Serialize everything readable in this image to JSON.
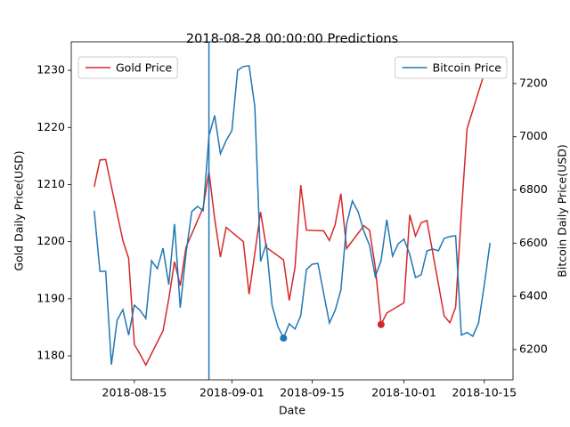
{
  "chart_data": {
    "type": "line",
    "title": "2018-08-28 00:00:00 Predictions",
    "x_label": "Date",
    "y_label": "Gold Daily Price(USD)",
    "y2_label": "Bitcoin Daily Price(USD)",
    "xlim": [
      "2018-08-04",
      "2018-10-20"
    ],
    "xticks": [
      "2018-08-15",
      "2018-09-01",
      "2018-09-15",
      "2018-10-01",
      "2018-10-15"
    ],
    "ylim": [
      1175.8,
      1235
    ],
    "yticks": [
      1180,
      1190,
      1200,
      1210,
      1220,
      1230
    ],
    "y2lim": [
      6086,
      7357
    ],
    "y2ticks": [
      6200,
      6400,
      6600,
      6800,
      7000,
      7200
    ],
    "vline_x": "2018-08-28",
    "vline_color": "#1f77b4",
    "series": [
      {
        "name": "Gold Price",
        "color": "#d62728",
        "axis": "y",
        "legend": "upper left",
        "x": [
          "2018-08-08",
          "2018-08-09",
          "2018-08-10",
          "2018-08-13",
          "2018-08-14",
          "2018-08-15",
          "2018-08-16",
          "2018-08-17",
          "2018-08-20",
          "2018-08-21",
          "2018-08-22",
          "2018-08-23",
          "2018-08-24",
          "2018-08-27",
          "2018-08-28",
          "2018-08-29",
          "2018-08-30",
          "2018-08-31",
          "2018-09-03",
          "2018-09-04",
          "2018-09-05",
          "2018-09-06",
          "2018-09-07",
          "2018-09-10",
          "2018-09-11",
          "2018-09-12",
          "2018-09-13",
          "2018-09-14",
          "2018-09-17",
          "2018-09-18",
          "2018-09-19",
          "2018-09-20",
          "2018-09-21",
          "2018-09-24",
          "2018-09-25",
          "2018-09-26",
          "2018-09-27",
          "2018-09-28",
          "2018-10-01",
          "2018-10-02",
          "2018-10-03",
          "2018-10-04",
          "2018-10-05",
          "2018-10-08",
          "2018-10-09",
          "2018-10-10",
          "2018-10-11",
          "2018-10-12",
          "2018-10-15"
        ],
        "values": [
          1209.6,
          1214.3,
          1214.4,
          1200.2,
          1197.1,
          1182,
          1180.3,
          1178.4,
          1184.4,
          1190,
          1196.5,
          1192.3,
          1199,
          1206,
          1212.3,
          1204,
          1197.3,
          1202.5,
          1200,
          1190.8,
          1198,
          1205.2,
          1199,
          1196.8,
          1189.7,
          1195.5,
          1209.9,
          1202,
          1201.9,
          1200.2,
          1203,
          1208.4,
          1198.8,
          1202.8,
          1202,
          1195.5,
          1185.5,
          1187.5,
          1189.3,
          1204.7,
          1201,
          1203.3,
          1203.7,
          1187,
          1185.8,
          1188.5,
          1205,
          1219.8,
          1229.5
        ],
        "marker_x": "2018-09-27",
        "marker_value": 1185.5
      },
      {
        "name": "Bitcoin Price",
        "color": "#1f77b4",
        "axis": "y2",
        "legend": "upper right",
        "x": [
          "2018-08-08",
          "2018-08-09",
          "2018-08-10",
          "2018-08-11",
          "2018-08-12",
          "2018-08-13",
          "2018-08-14",
          "2018-08-15",
          "2018-08-16",
          "2018-08-17",
          "2018-08-18",
          "2018-08-19",
          "2018-08-20",
          "2018-08-21",
          "2018-08-22",
          "2018-08-23",
          "2018-08-24",
          "2018-08-25",
          "2018-08-26",
          "2018-08-27",
          "2018-08-28",
          "2018-08-29",
          "2018-08-30",
          "2018-08-31",
          "2018-09-01",
          "2018-09-02",
          "2018-09-03",
          "2018-09-04",
          "2018-09-05",
          "2018-09-06",
          "2018-09-07",
          "2018-09-08",
          "2018-09-09",
          "2018-09-10",
          "2018-09-11",
          "2018-09-12",
          "2018-09-13",
          "2018-09-14",
          "2018-09-15",
          "2018-09-16",
          "2018-09-17",
          "2018-09-18",
          "2018-09-19",
          "2018-09-20",
          "2018-09-21",
          "2018-09-22",
          "2018-09-23",
          "2018-09-24",
          "2018-09-25",
          "2018-09-26",
          "2018-09-27",
          "2018-09-28",
          "2018-09-29",
          "2018-09-30",
          "2018-10-01",
          "2018-10-02",
          "2018-10-03",
          "2018-10-04",
          "2018-10-05",
          "2018-10-06",
          "2018-10-07",
          "2018-10-08",
          "2018-10-09",
          "2018-10-10",
          "2018-10-11",
          "2018-10-12",
          "2018-10-13",
          "2018-10-14",
          "2018-10-15",
          "2018-10-16"
        ],
        "values": [
          6722,
          6494,
          6494,
          6143,
          6310,
          6350,
          6254,
          6367,
          6347,
          6317,
          6534,
          6504,
          6581,
          6444,
          6672,
          6357,
          6561,
          6718,
          6738,
          6722,
          7003,
          7080,
          6936,
          6986,
          7023,
          7250,
          7264,
          7267,
          7113,
          6531,
          6598,
          6367,
          6287,
          6243,
          6297,
          6277,
          6327,
          6501,
          6521,
          6524,
          6411,
          6300,
          6347,
          6424,
          6672,
          6759,
          6718,
          6645,
          6591,
          6474,
          6534,
          6688,
          6551,
          6598,
          6615,
          6558,
          6471,
          6481,
          6571,
          6578,
          6571,
          6618,
          6625,
          6628,
          6254,
          6264,
          6250,
          6300,
          6444,
          6601
        ],
        "marker_x": "2018-09-10",
        "marker_value": 6243
      }
    ]
  }
}
